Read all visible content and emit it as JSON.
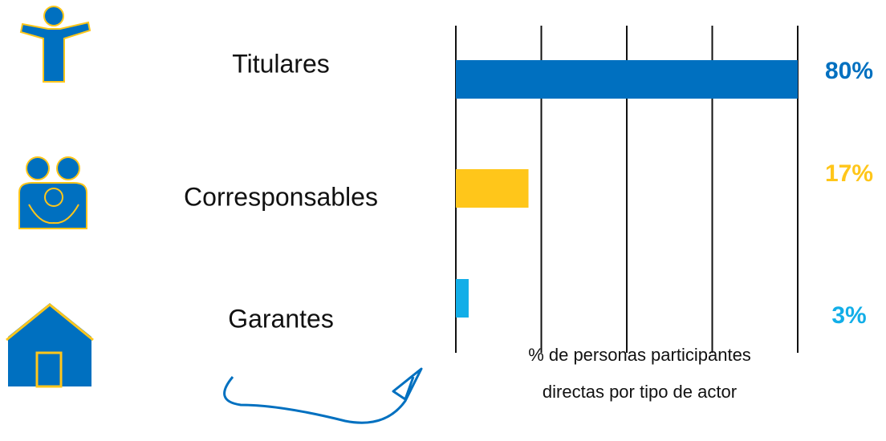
{
  "chart_data": {
    "type": "barh",
    "categories": [
      "Titulares",
      "Corresponsables",
      "Garantes"
    ],
    "values": [
      80,
      17,
      3
    ],
    "value_labels": [
      "80%",
      "17%",
      "3%"
    ],
    "colors": [
      "#0070c0",
      "#ffc61a",
      "#12aee8"
    ],
    "x_label": "% de personas participantes directas por tipo de actor",
    "xlim": [
      0,
      80
    ],
    "xticks": [
      0,
      20,
      40,
      60,
      80
    ],
    "grid": true
  }
}
